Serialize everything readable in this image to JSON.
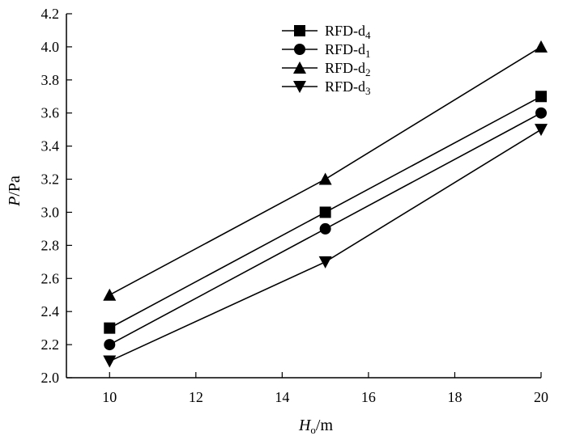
{
  "chart_data": {
    "type": "line",
    "xlabel_italic": "H",
    "xlabel_sub": "o",
    "xlabel_unit": "/m",
    "ylabel_italic": "P",
    "ylabel_unit": "/Pa",
    "xlim": [
      9,
      20
    ],
    "ylim": [
      2.0,
      4.2
    ],
    "x_ticks": [
      10,
      12,
      14,
      16,
      18,
      20
    ],
    "y_ticks": [
      2.0,
      2.2,
      2.4,
      2.6,
      2.8,
      3.0,
      3.2,
      3.4,
      3.6,
      3.8,
      4.0,
      4.2
    ],
    "x_tick_labels": [
      "10",
      "12",
      "14",
      "16",
      "18",
      "20"
    ],
    "y_tick_labels": [
      "2.0",
      "2.2",
      "2.4",
      "2.6",
      "2.8",
      "3.0",
      "3.2",
      "3.4",
      "3.6",
      "3.8",
      "4.0",
      "4.2"
    ],
    "grid": false,
    "legend_position": "top-center",
    "x": [
      10,
      15,
      20
    ],
    "series": [
      {
        "name": "RFD-d4",
        "label_base": "RFD-d",
        "label_sub": "4",
        "marker": "square",
        "values": [
          2.3,
          3.0,
          3.7
        ]
      },
      {
        "name": "RFD-d1",
        "label_base": "RFD-d",
        "label_sub": "1",
        "marker": "circle",
        "values": [
          2.2,
          2.9,
          3.6
        ]
      },
      {
        "name": "RFD-d2",
        "label_base": "RFD-d",
        "label_sub": "2",
        "marker": "triangle-up",
        "values": [
          2.5,
          3.2,
          4.0
        ]
      },
      {
        "name": "RFD-d3",
        "label_base": "RFD-d",
        "label_sub": "3",
        "marker": "triangle-down",
        "values": [
          2.1,
          2.7,
          3.5
        ]
      }
    ],
    "colors": {
      "line": "#000000",
      "marker": "#000000"
    }
  }
}
